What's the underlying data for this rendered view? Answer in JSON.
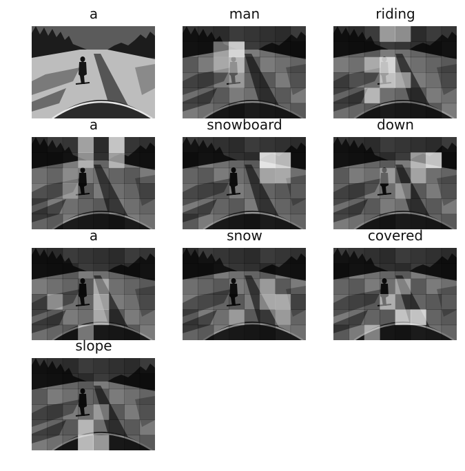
{
  "words": [
    "a",
    "man",
    "riding",
    "a",
    "snowboard",
    "down",
    "a",
    "snow",
    "covered",
    "slope"
  ],
  "attention_highlights": [
    [],
    [
      [
        1,
        3,
        0.75
      ],
      [
        2,
        3,
        0.55
      ],
      [
        2,
        2,
        0.4
      ],
      [
        1,
        2,
        0.4
      ],
      [
        3,
        3,
        0.3
      ]
    ],
    [
      [
        2,
        3,
        0.75
      ],
      [
        3,
        3,
        0.6
      ],
      [
        3,
        4,
        0.5
      ],
      [
        4,
        2,
        0.45
      ],
      [
        2,
        2,
        0.45
      ],
      [
        0,
        3,
        0.5
      ],
      [
        0,
        4,
        0.45
      ]
    ],
    [
      [
        0,
        3,
        0.55
      ],
      [
        1,
        3,
        0.45
      ],
      [
        0,
        5,
        0.7
      ],
      [
        1,
        5,
        0.55
      ],
      [
        3,
        2,
        0.35
      ],
      [
        2,
        2,
        0.3
      ]
    ],
    [
      [
        1,
        5,
        0.8
      ],
      [
        1,
        6,
        0.7
      ],
      [
        2,
        5,
        0.45
      ],
      [
        2,
        6,
        0.35
      ]
    ],
    [
      [
        1,
        6,
        0.75
      ],
      [
        1,
        5,
        0.5
      ],
      [
        3,
        4,
        0.35
      ],
      [
        2,
        3,
        0.35
      ],
      [
        2,
        5,
        0.3
      ]
    ],
    [
      [
        3,
        4,
        0.55
      ],
      [
        4,
        4,
        0.45
      ],
      [
        5,
        3,
        0.4
      ],
      [
        2,
        4,
        0.35
      ],
      [
        3,
        1,
        0.35
      ]
    ],
    [
      [
        3,
        6,
        0.45
      ],
      [
        3,
        5,
        0.4
      ],
      [
        4,
        3,
        0.35
      ],
      [
        2,
        5,
        0.35
      ],
      [
        4,
        6,
        0.3
      ]
    ],
    [
      [
        4,
        5,
        0.7
      ],
      [
        4,
        4,
        0.55
      ],
      [
        5,
        2,
        0.45
      ],
      [
        3,
        3,
        0.4
      ],
      [
        2,
        4,
        0.4
      ]
    ],
    [
      [
        5,
        3,
        0.7
      ],
      [
        5,
        4,
        0.55
      ],
      [
        4,
        3,
        0.45
      ],
      [
        3,
        4,
        0.35
      ]
    ]
  ]
}
